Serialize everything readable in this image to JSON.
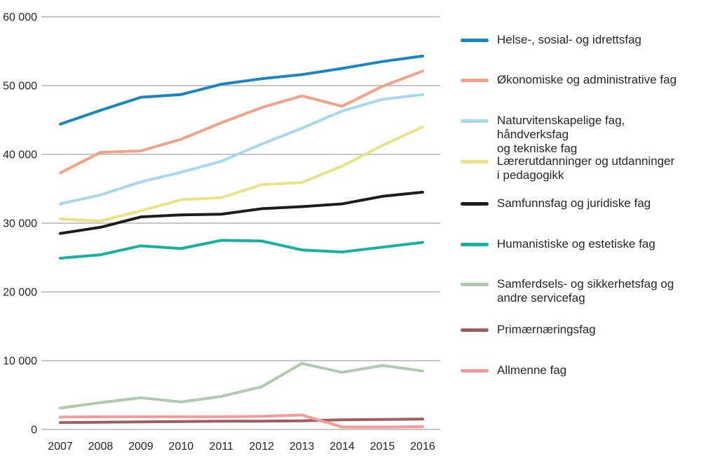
{
  "chart_data": {
    "type": "line",
    "title": "",
    "xlabel": "",
    "ylabel": "",
    "x": [
      2007,
      2008,
      2009,
      2010,
      2011,
      2012,
      2013,
      2014,
      2015,
      2016
    ],
    "x_tick_labels": [
      "2007",
      "2008",
      "2009",
      "2010",
      "2011",
      "2012",
      "2013",
      "2014",
      "2015",
      "2016"
    ],
    "ylim": [
      0,
      60000
    ],
    "y_ticks": [
      0,
      10000,
      20000,
      30000,
      40000,
      50000,
      60000
    ],
    "y_tick_labels": [
      "0",
      "10 000",
      "20 000",
      "30 000",
      "40 000",
      "50 000",
      "60 000"
    ],
    "grid": "horizontal",
    "legend_position": "right",
    "series": [
      {
        "name": "Helse-, sosial- og idrettsfag",
        "color": "#1a86c0",
        "values": [
          44400,
          46400,
          48300,
          48700,
          50200,
          51000,
          51600,
          52500,
          53500,
          54300
        ]
      },
      {
        "name": "Økonomiske og administrative fag",
        "color": "#f1a287",
        "values": [
          37300,
          40300,
          40500,
          42200,
          44600,
          46800,
          48500,
          47000,
          49900,
          52100
        ]
      },
      {
        "name": "Naturvitenskapelige fag, håndverksfag og tekniske fag",
        "color": "#a6d8f0",
        "values": [
          32800,
          34100,
          36000,
          37400,
          39000,
          41500,
          43800,
          46300,
          48000,
          48700
        ]
      },
      {
        "name": "Lærerutdanninger og utdanninger i pedagogikk",
        "color": "#ebe187",
        "values": [
          30600,
          30300,
          31800,
          33400,
          33700,
          35600,
          35900,
          38300,
          41300,
          44000
        ]
      },
      {
        "name": "Samfunnsfag og juridiske fag",
        "color": "#1c1c1c",
        "values": [
          28500,
          29400,
          30900,
          31200,
          31300,
          32100,
          32400,
          32800,
          33900,
          34500
        ]
      },
      {
        "name": "Humanistiske og estetiske fag",
        "color": "#16b1a1",
        "values": [
          24900,
          25400,
          26700,
          26300,
          27500,
          27400,
          26100,
          25800,
          26500,
          27200
        ]
      },
      {
        "name": "Samferdsels- og sikkerhetsfag og andre servicefag",
        "color": "#adcbad",
        "values": [
          3100,
          3900,
          4600,
          4000,
          4800,
          6200,
          9600,
          8300,
          9300,
          8500
        ]
      },
      {
        "name": "Primærnæringsfag",
        "color": "#9f5e5e",
        "values": [
          1000,
          1050,
          1100,
          1150,
          1200,
          1200,
          1250,
          1400,
          1450,
          1500
        ]
      },
      {
        "name": "Allmenne fag",
        "color": "#f49a98",
        "values": [
          1800,
          1850,
          1850,
          1850,
          1850,
          1900,
          2100,
          350,
          350,
          400
        ]
      }
    ],
    "legend": [
      {
        "lines": [
          "Helse-, sosial- og idrettsfag"
        ]
      },
      {
        "lines": [
          "Økonomiske og administrative fag"
        ]
      },
      {
        "lines": [
          "Naturvitenskapelige fag, håndverksfag",
          "og tekniske fag"
        ]
      },
      {
        "lines": [
          "Lærerutdanninger og utdanninger",
          "i pedagogikk"
        ]
      },
      {
        "lines": [
          "Samfunnsfag og juridiske fag"
        ]
      },
      {
        "lines": [
          "Humanistiske og estetiske fag"
        ]
      },
      {
        "lines": [
          "Samferdsels- og sikkerhetsfag og",
          "andre servicefag"
        ]
      },
      {
        "lines": [
          "Primærnæringsfag"
        ]
      },
      {
        "lines": [
          "Allmenne fag"
        ]
      }
    ]
  },
  "colors": {
    "background": "#ffffff",
    "gridline": "#a3a3a3",
    "text": "#262626"
  }
}
